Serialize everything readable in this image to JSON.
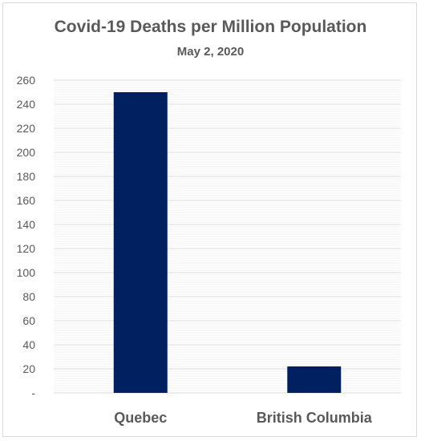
{
  "chart_data": {
    "type": "bar",
    "title": "Covid-19 Deaths per Million Population",
    "subtitle": "May 2, 2020",
    "categories": [
      "Quebec",
      "British Columbia"
    ],
    "values": [
      250,
      22
    ],
    "ylim": [
      0,
      260
    ],
    "yticks": [
      0,
      20,
      40,
      60,
      80,
      100,
      120,
      140,
      160,
      180,
      200,
      220,
      240,
      260
    ],
    "ytick_labels": [
      "-",
      "20",
      "40",
      "60",
      "80",
      "100",
      "120",
      "140",
      "160",
      "180",
      "200",
      "220",
      "240",
      "260"
    ],
    "grid": true,
    "legend": "none",
    "colors": {
      "bar": "#002060",
      "text": "#595959",
      "grid": "#e4e4e4"
    }
  }
}
